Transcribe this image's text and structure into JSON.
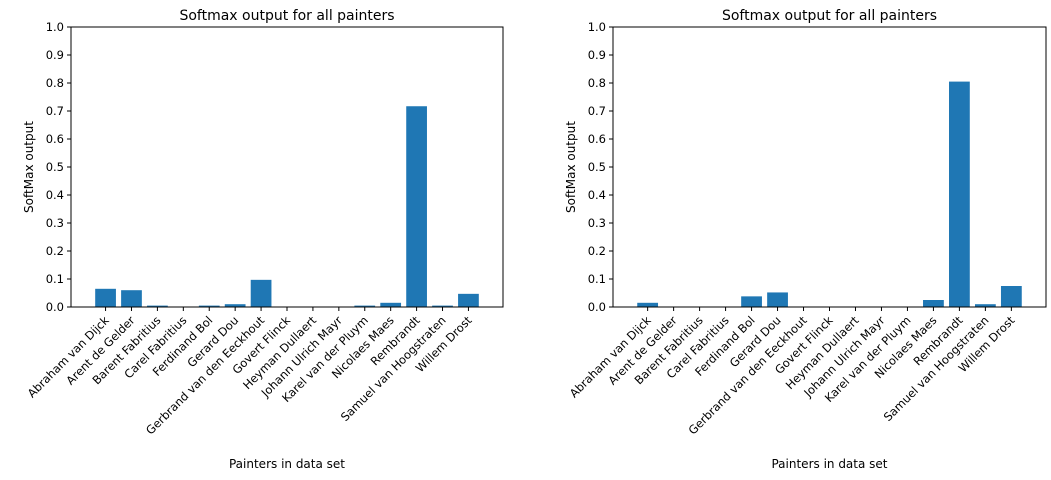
{
  "chart_data": [
    {
      "type": "bar",
      "title": "Softmax output for all painters",
      "xlabel": "Painters in data set",
      "ylabel": "SoftMax output",
      "ylim": [
        0,
        1.0
      ],
      "yticks": [
        "0.0",
        "0.1",
        "0.2",
        "0.3",
        "0.4",
        "0.5",
        "0.6",
        "0.7",
        "0.8",
        "0.9",
        "1.0"
      ],
      "grid": false,
      "categories": [
        "Abraham van Dijck",
        "Arent de Gelder",
        "Barent Fabritius",
        "Carel Fabritius",
        "Ferdinand Bol",
        "Gerard Dou",
        "Gerbrand van den Eeckhout",
        "Govert Flinck",
        "Heyman Dullaert",
        "Johann Ulrich Mayr",
        "Karel van der Pluym",
        "Nicolaes Maes",
        "Rembrandt",
        "Samuel van Hoogstraten",
        "Willem Drost"
      ],
      "values": [
        0.065,
        0.06,
        0.005,
        0.001,
        0.005,
        0.01,
        0.097,
        0.001,
        0.001,
        0.001,
        0.005,
        0.015,
        0.717,
        0.005,
        0.047
      ],
      "color": "#1f77b4"
    },
    {
      "type": "bar",
      "title": "Softmax output for all painters",
      "xlabel": "Painters in data set",
      "ylabel": "SoftMax output",
      "ylim": [
        0,
        1.0
      ],
      "yticks": [
        "0.0",
        "0.1",
        "0.2",
        "0.3",
        "0.4",
        "0.5",
        "0.6",
        "0.7",
        "0.8",
        "0.9",
        "1.0"
      ],
      "grid": false,
      "categories": [
        "Abraham van Dijck",
        "Arent de Gelder",
        "Barent Fabritius",
        "Carel Fabritius",
        "Ferdinand Bol",
        "Gerard Dou",
        "Gerbrand van den Eeckhout",
        "Govert Flinck",
        "Heyman Dullaert",
        "Johann Ulrich Mayr",
        "Karel van der Pluym",
        "Nicolaes Maes",
        "Rembrandt",
        "Samuel van Hoogstraten",
        "Willem Drost"
      ],
      "values": [
        0.015,
        0.0,
        0.0,
        0.0,
        0.038,
        0.052,
        0.0,
        0.0,
        0.0,
        0.0,
        0.0,
        0.025,
        0.805,
        0.01,
        0.075
      ],
      "color": "#1f77b4"
    }
  ]
}
